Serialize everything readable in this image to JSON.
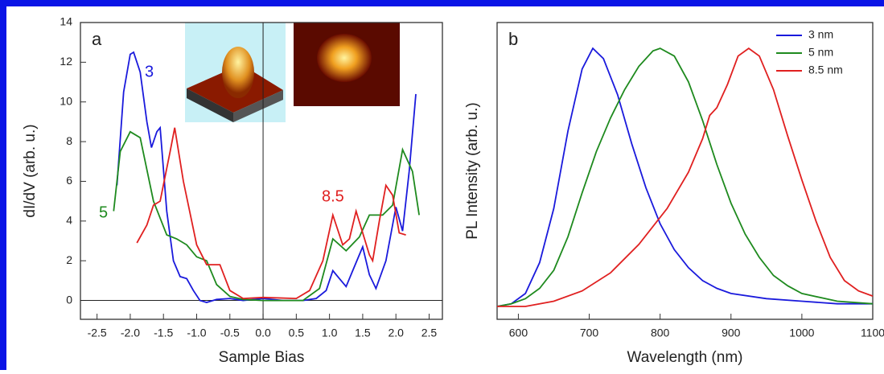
{
  "chart_data": [
    {
      "type": "line",
      "panel": "a",
      "xlabel": "Sample Bias",
      "ylabel": "dI/dV (arb. u.)",
      "xlim": [
        -2.75,
        2.7
      ],
      "ylim": [
        -0.95,
        14
      ],
      "xticks": [
        -2.5,
        {
          "value": -2,
          "label": "-2.0"
        },
        -1.5,
        {
          "value": -1,
          "label": "-1.0"
        },
        -0.5,
        {
          "value": 0,
          "label": "0.0"
        },
        0.5,
        {
          "value": 1,
          "label": "1.0"
        },
        1.5,
        {
          "value": 2,
          "label": "2.0"
        },
        2.5
      ],
      "yticks": [
        0,
        2,
        4,
        6,
        8,
        10,
        12,
        14
      ],
      "zero_lines": true,
      "series": [
        {
          "name": "3",
          "color": "#1a1adc",
          "x": [
            -2.2,
            -2.1,
            -2.0,
            -1.95,
            -1.85,
            -1.75,
            -1.68,
            -1.6,
            -1.55,
            -1.45,
            -1.35,
            -1.25,
            -1.15,
            -1.05,
            -0.95,
            -0.85,
            -0.7,
            -0.5,
            -0.3,
            0,
            0.3,
            0.6,
            0.8,
            0.95,
            1.05,
            1.15,
            1.25,
            1.35,
            1.5,
            1.6,
            1.7,
            1.85,
            2.0,
            2.1,
            2.2,
            2.3
          ],
          "values": [
            5.8,
            10.5,
            12.4,
            12.5,
            11.5,
            9,
            7.7,
            8.5,
            8.7,
            4.5,
            2,
            1.2,
            1.1,
            0.5,
            0,
            -0.1,
            0.05,
            0.1,
            0,
            0.1,
            0,
            0,
            0.1,
            0.5,
            1.5,
            1.1,
            0.7,
            1.5,
            2.7,
            1.3,
            0.6,
            2.0,
            4.7,
            3.5,
            6.5,
            10.4
          ]
        },
        {
          "name": "5",
          "color": "#1e8a1e",
          "x": [
            -2.25,
            -2.15,
            -2.0,
            -1.85,
            -1.65,
            -1.45,
            -1.3,
            -1.15,
            -1.0,
            -0.85,
            -0.7,
            -0.5,
            -0.3,
            0,
            0.3,
            0.6,
            0.85,
            1.05,
            1.25,
            1.45,
            1.6,
            1.8,
            1.95,
            2.1,
            2.25,
            2.35
          ],
          "values": [
            4.5,
            7.5,
            8.5,
            8.2,
            5,
            3.3,
            3.1,
            2.8,
            2.2,
            2.0,
            0.8,
            0.2,
            0.05,
            0,
            0,
            0,
            0.6,
            3.1,
            2.5,
            3.2,
            4.3,
            4.3,
            4.8,
            7.6,
            6.5,
            4.3
          ]
        },
        {
          "name": "8.5",
          "color": "#e02020",
          "x": [
            -1.9,
            -1.75,
            -1.65,
            -1.55,
            -1.4,
            -1.33,
            -1.2,
            -1.0,
            -0.85,
            -0.65,
            -0.5,
            -0.3,
            0,
            0.5,
            0.7,
            0.9,
            1.05,
            1.2,
            1.3,
            1.4,
            1.6,
            1.65,
            1.75,
            1.85,
            1.95,
            2.05,
            2.15
          ],
          "values": [
            2.9,
            3.8,
            4.8,
            5.0,
            7.5,
            8.7,
            6,
            2.8,
            1.8,
            1.8,
            0.5,
            0.1,
            0.15,
            0.1,
            0.5,
            2,
            4.3,
            2.8,
            3.1,
            4.5,
            2.3,
            2,
            4,
            5.8,
            5.3,
            3.4,
            3.3
          ]
        }
      ]
    },
    {
      "type": "line",
      "panel": "b",
      "xlabel": "Wavelength (nm)",
      "ylabel": "PL Intensity (arb. u.)",
      "xlim": [
        570,
        1100
      ],
      "ylim": [
        -0.05,
        1.1
      ],
      "xticks": [
        600,
        700,
        800,
        900,
        1000,
        1100
      ],
      "legend": "upper right",
      "series": [
        {
          "name": "3 nm",
          "color": "#1a1adc",
          "x": [
            570,
            590,
            610,
            630,
            650,
            670,
            690,
            705,
            720,
            740,
            760,
            780,
            800,
            820,
            840,
            860,
            880,
            900,
            950,
            1000,
            1050,
            1100
          ],
          "values": [
            0.0,
            0.01,
            0.05,
            0.17,
            0.38,
            0.68,
            0.92,
            1.0,
            0.96,
            0.82,
            0.63,
            0.46,
            0.32,
            0.22,
            0.15,
            0.1,
            0.07,
            0.05,
            0.03,
            0.02,
            0.01,
            0.01
          ]
        },
        {
          "name": "5 nm",
          "color": "#1e8a1e",
          "x": [
            570,
            590,
            610,
            630,
            650,
            670,
            690,
            710,
            730,
            750,
            770,
            790,
            800,
            820,
            840,
            860,
            880,
            900,
            920,
            940,
            960,
            980,
            1000,
            1050,
            1100
          ],
          "values": [
            0.0,
            0.01,
            0.03,
            0.07,
            0.14,
            0.27,
            0.44,
            0.6,
            0.73,
            0.84,
            0.93,
            0.99,
            1.0,
            0.97,
            0.87,
            0.72,
            0.55,
            0.4,
            0.28,
            0.19,
            0.12,
            0.08,
            0.05,
            0.02,
            0.01
          ]
        },
        {
          "name": "8.5 nm",
          "color": "#e02020",
          "x": [
            570,
            610,
            650,
            690,
            730,
            770,
            810,
            840,
            860,
            870,
            880,
            895,
            910,
            925,
            940,
            960,
            980,
            1000,
            1020,
            1040,
            1060,
            1080,
            1100
          ],
          "values": [
            0,
            0.0,
            0.02,
            0.06,
            0.13,
            0.24,
            0.38,
            0.52,
            0.65,
            0.74,
            0.77,
            0.86,
            0.97,
            1.0,
            0.97,
            0.84,
            0.66,
            0.49,
            0.33,
            0.19,
            0.1,
            0.06,
            0.04
          ]
        }
      ]
    }
  ]
}
